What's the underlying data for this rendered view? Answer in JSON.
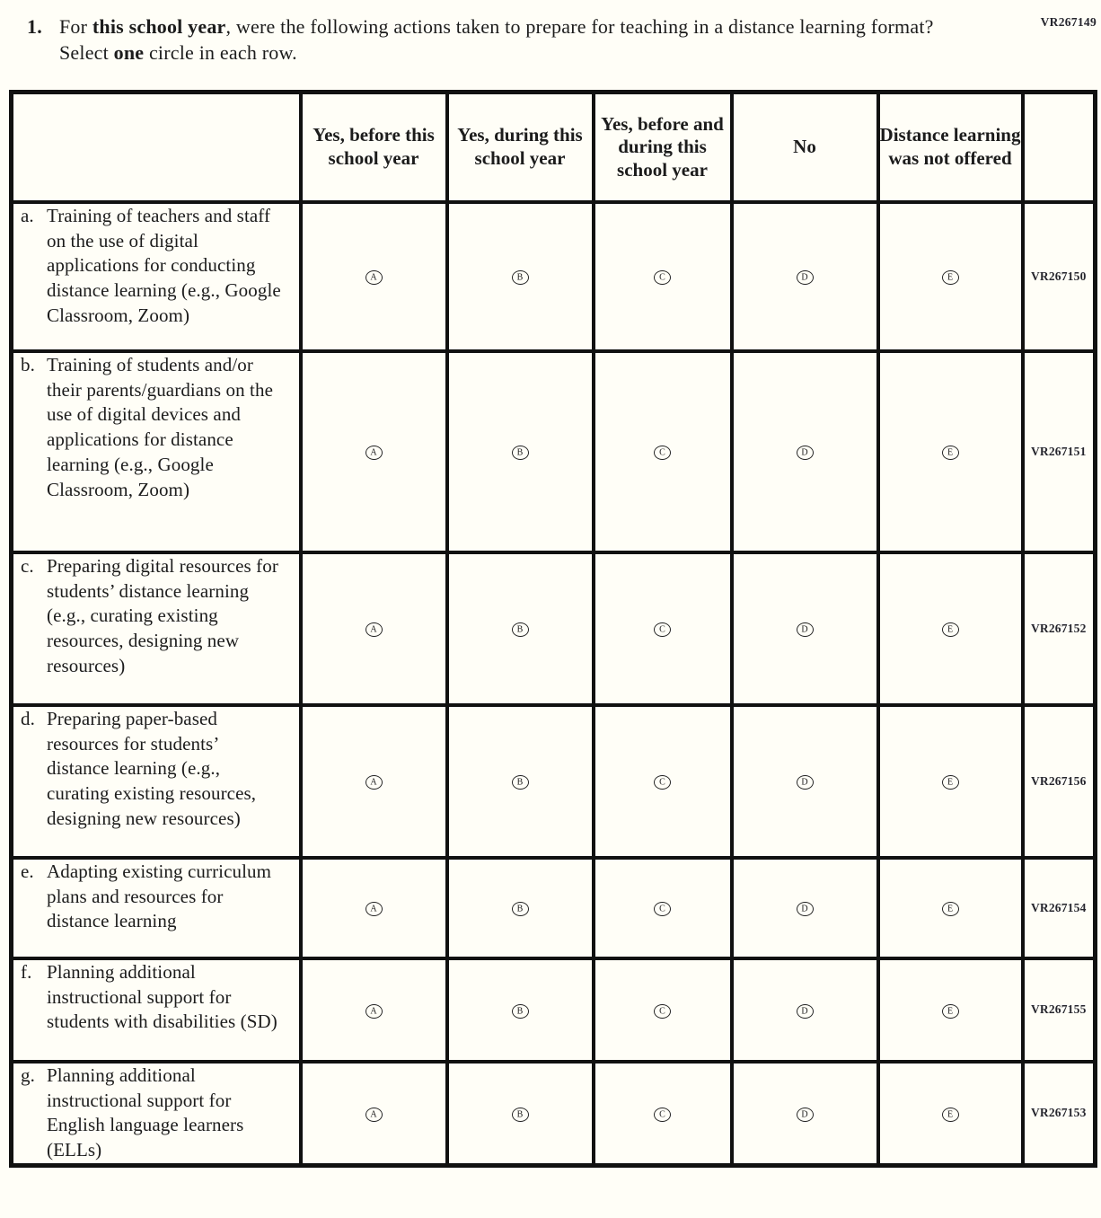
{
  "page": {
    "top_code": "VR267149",
    "background_color": "#fffef7",
    "text_color": "#1c1c1c",
    "border_color": "#111111"
  },
  "question": {
    "number": "1.",
    "part1": "For ",
    "bold1": "this school year",
    "part2": ", were the following actions taken to prepare for teaching in a distance learning format? Select ",
    "bold2": "one",
    "part3": " circle in each row."
  },
  "table": {
    "headers": [
      "",
      "Yes, before this school year",
      "Yes, during this school year",
      "Yes, before and during this school year",
      "No",
      "Distance learning was not offered",
      ""
    ],
    "options": [
      "A",
      "B",
      "C",
      "D",
      "E"
    ],
    "rows": [
      {
        "letter": "a.",
        "text": "Training of teachers and staff on the use of digital applications for conducting distance learning (e.g., Google Classroom, Zoom)",
        "code": "VR267150"
      },
      {
        "letter": "b.",
        "text": "Training of students and/or their parents/guardians on the use of digital devices and applications for distance learning (e.g., Google Classroom, Zoom)",
        "code": "VR267151"
      },
      {
        "letter": "c.",
        "text": "Preparing digital resources for students’ distance learning (e.g., curating existing resources, designing new resources)",
        "code": "VR267152"
      },
      {
        "letter": "d.",
        "text": "Preparing paper-based resources for students’ distance learning (e.g., curating existing resources, designing new resources)",
        "code": "VR267156"
      },
      {
        "letter": "e.",
        "text": "Adapting existing curriculum plans and resources for distance learning",
        "code": "VR267154"
      },
      {
        "letter": "f.",
        "text": "Planning additional instructional support for students with disabilities (SD)",
        "code": "VR267155"
      },
      {
        "letter": "g.",
        "text": "Planning additional instructional support for English language learners (ELLs)",
        "code": "VR267153"
      }
    ]
  }
}
